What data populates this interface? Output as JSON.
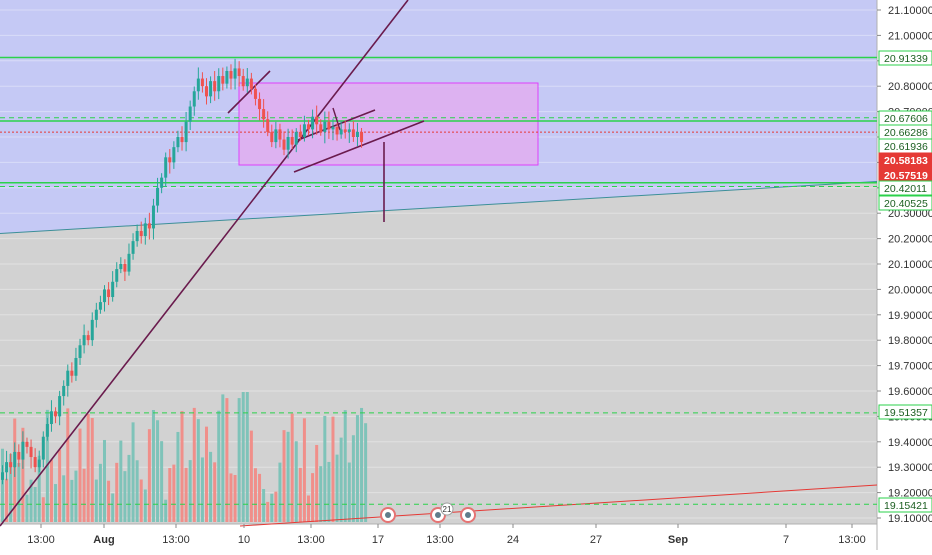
{
  "chart_data": {
    "type": "candlestick",
    "price_axis": {
      "ylim": [
        19.08,
        21.12
      ],
      "ticks": [
        21.1,
        21.0,
        20.9,
        20.8,
        20.7,
        20.6,
        20.5,
        20.4,
        20.3,
        20.2,
        20.1,
        20.0,
        19.9,
        19.8,
        19.7,
        19.6,
        19.5,
        19.4,
        19.3,
        19.2,
        19.1
      ],
      "tick_labels": [
        "21.10000",
        "21.00000",
        "20.90000",
        "20.80000",
        "20.70000",
        "20.60000",
        "20.50000",
        "20.40000",
        "20.30000",
        "20.20000",
        "20.10000",
        "20.00000",
        "19.90000",
        "19.80000",
        "19.70000",
        "19.60000",
        "19.50000",
        "19.40000",
        "19.30000",
        "19.20000",
        "19.10000"
      ]
    },
    "time_axis": {
      "labels": [
        "13:00",
        "Aug",
        "13:00",
        "10",
        "13:00",
        "17",
        "13:00",
        "24",
        "27",
        "Sep",
        "7",
        "13:00"
      ]
    },
    "price_badges": [
      {
        "label": "20.91339",
        "value": 20.913,
        "style": "green-outline"
      },
      {
        "label": "20.67606",
        "value": 20.676,
        "style": "green-outline"
      },
      {
        "label": "20.66286",
        "value": 20.663,
        "style": "green-outline"
      },
      {
        "label": "20.61936",
        "value": 20.619,
        "style": "green-outline"
      },
      {
        "label": "20.58183",
        "value": 20.582,
        "style": "red-fill"
      },
      {
        "label": "20.57519",
        "value": 20.575,
        "style": "red-fill"
      },
      {
        "label": "20.42011",
        "value": 20.42,
        "style": "green-outline"
      },
      {
        "label": "20.40525",
        "value": 20.405,
        "style": "green-outline"
      },
      {
        "label": "19.51357",
        "value": 19.514,
        "style": "green-outline"
      },
      {
        "label": "19.15421",
        "value": 19.154,
        "style": "green-outline"
      }
    ],
    "horizontal_levels": [
      {
        "value": 20.913,
        "style": "solid",
        "color": "#2bd24b"
      },
      {
        "value": 20.676,
        "style": "dashed",
        "color": "#2bd24b"
      },
      {
        "value": 20.663,
        "style": "solid",
        "color": "#2bd24b"
      },
      {
        "value": 20.619,
        "style": "dotted",
        "color": "#e53935"
      },
      {
        "value": 20.42,
        "style": "solid",
        "color": "#2bd24b"
      },
      {
        "value": 20.405,
        "style": "dashed",
        "color": "#2bd24b"
      },
      {
        "value": 19.514,
        "style": "dashed",
        "color": "#2bd24b"
      },
      {
        "value": 19.154,
        "style": "dashed",
        "color": "#2bd24b"
      }
    ],
    "event_marker_count": "21",
    "colors": {
      "up": "#26a69a",
      "down": "#ef5350",
      "volume_up": "#7fc3b9",
      "volume_down": "#f08f8a",
      "upper_zone": "#c5c9f5",
      "lower_zone": "#d2d2d2",
      "box_fill": "#e0aef0",
      "box_stroke": "#e040fb",
      "level_green": "#2bd24b",
      "trendline": "#6a1b4d",
      "teal_line": "#3c8f98",
      "red_line": "#e53935"
    }
  }
}
